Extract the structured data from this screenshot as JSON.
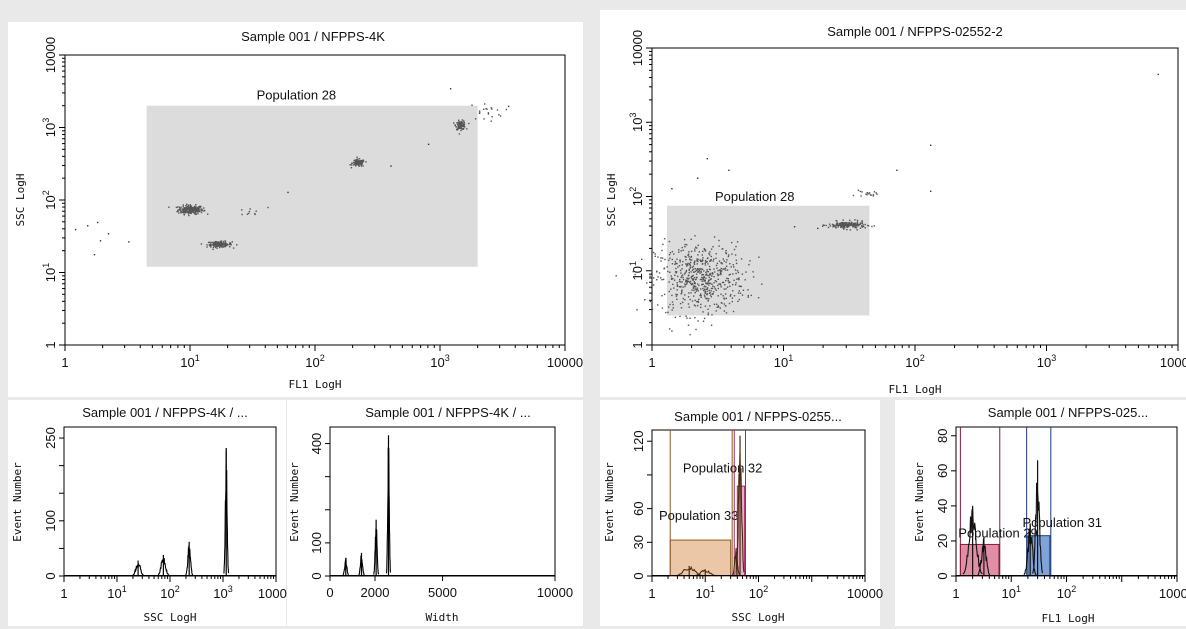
{
  "chart_data": [
    {
      "id": "left_dot",
      "type": "scatter",
      "title": "Sample 001 / NFPPS-4K",
      "xlabel": "FL1 LogH",
      "ylabel": "SSC LogH",
      "xscale": "log",
      "yscale": "log",
      "xlim": [
        1,
        10000
      ],
      "ylim": [
        1,
        10000
      ],
      "x_ticks": [
        {
          "b": "1",
          "e": ""
        },
        {
          "b": "10",
          "e": "1"
        },
        {
          "b": "10",
          "e": "2"
        },
        {
          "b": "10",
          "e": "3"
        },
        {
          "b": "10000",
          "e": ""
        }
      ],
      "y_ticks": [
        {
          "b": "1",
          "e": ""
        },
        {
          "b": "10",
          "e": "1"
        },
        {
          "b": "10",
          "e": "2"
        },
        {
          "b": "10",
          "e": "3"
        },
        {
          "b": "10000",
          "e": ""
        }
      ],
      "gate": {
        "label": "Population 28",
        "x": [
          4.5,
          2000
        ],
        "y": [
          12,
          2000
        ]
      },
      "clusters": [
        {
          "x": 10,
          "y": 75,
          "n": 220,
          "sx": 0.05,
          "sy": 0.03
        },
        {
          "x": 17,
          "y": 25,
          "n": 130,
          "sx": 0.05,
          "sy": 0.02
        },
        {
          "x": 220,
          "y": 330,
          "n": 110,
          "sx": 0.025,
          "sy": 0.025
        },
        {
          "x": 1450,
          "y": 1100,
          "n": 90,
          "sx": 0.02,
          "sy": 0.03
        },
        {
          "x": 2300,
          "y": 1700,
          "n": 20,
          "sx": 0.07,
          "sy": 0.06
        },
        {
          "x": 30,
          "y": 70,
          "n": 10,
          "sx": 0.07,
          "sy": 0.03
        }
      ],
      "points": [
        [
          1.2,
          40
        ],
        [
          1.5,
          45
        ],
        [
          1.7,
          18
        ],
        [
          1.9,
          28
        ],
        [
          2.2,
          35
        ],
        [
          3.2,
          27
        ],
        [
          1.8,
          50
        ],
        [
          60,
          130
        ],
        [
          800,
          600
        ],
        [
          1200,
          3500
        ],
        [
          400,
          300
        ],
        [
          3500,
          2000
        ]
      ]
    },
    {
      "id": "right_dot",
      "type": "scatter",
      "title": "Sample 001 / NFPPS-02552-2",
      "xlabel": "FL1 LogH",
      "ylabel": "SSC LogH",
      "xscale": "log",
      "yscale": "log",
      "xlim": [
        1,
        10000
      ],
      "ylim": [
        1,
        10000
      ],
      "x_ticks": [
        {
          "b": "1",
          "e": ""
        },
        {
          "b": "10",
          "e": "1"
        },
        {
          "b": "10",
          "e": "2"
        },
        {
          "b": "10",
          "e": "3"
        },
        {
          "b": "10000",
          "e": ""
        }
      ],
      "y_ticks": [
        {
          "b": "1",
          "e": ""
        },
        {
          "b": "10",
          "e": "1"
        },
        {
          "b": "10",
          "e": "2"
        },
        {
          "b": "10",
          "e": "3"
        },
        {
          "b": "10000",
          "e": ""
        }
      ],
      "gate": {
        "label": "Population 28",
        "x": [
          1.3,
          45
        ],
        "y": [
          2.5,
          75
        ]
      },
      "clusters": [
        {
          "x": 2.3,
          "y": 8,
          "n": 600,
          "sx": 0.17,
          "sy": 0.24
        },
        {
          "x": 30,
          "y": 42,
          "n": 180,
          "sx": 0.07,
          "sy": 0.025
        },
        {
          "x": 42,
          "y": 110,
          "n": 18,
          "sx": 0.04,
          "sy": 0.02
        }
      ],
      "points": [
        [
          2.6,
          330
        ],
        [
          3.8,
          230
        ],
        [
          130,
          500
        ],
        [
          7000,
          4500
        ],
        [
          72,
          230
        ],
        [
          130,
          120
        ],
        [
          1.4,
          130
        ],
        [
          2.2,
          180
        ],
        [
          12,
          40
        ],
        [
          18,
          38
        ]
      ]
    },
    {
      "id": "left_hist_ssc",
      "type": "histogram",
      "title": "Sample 001 / NFPPS-4K / ...",
      "xlabel": "SSC LogH",
      "ylabel": "Event Number",
      "xscale": "log",
      "xlim": [
        1,
        10000
      ],
      "ylim": [
        0,
        270
      ],
      "x_ticks": [
        {
          "b": "1",
          "e": ""
        },
        {
          "b": "10",
          "e": "1"
        },
        {
          "b": "10",
          "e": "2"
        },
        {
          "b": "10",
          "e": "3"
        },
        {
          "b": "10000",
          "e": ""
        }
      ],
      "y_ticks": [
        0,
        50,
        100,
        150,
        200,
        250
      ],
      "y_tick_labels": [
        "0",
        "",
        "100",
        "",
        "",
        "250"
      ],
      "peaks": [
        {
          "x": 25,
          "y": 28,
          "w": 0.05
        },
        {
          "x": 75,
          "y": 38,
          "w": 0.05
        },
        {
          "x": 230,
          "y": 62,
          "w": 0.03
        },
        {
          "x": 1150,
          "y": 232,
          "w": 0.02
        }
      ]
    },
    {
      "id": "left_hist_width",
      "type": "histogram",
      "title": "Sample 001 / NFPPS-4K / ...",
      "xlabel": "Width",
      "ylabel": "Event Number",
      "xscale": "linear",
      "xlim": [
        0,
        10000
      ],
      "ylim": [
        0,
        450
      ],
      "x_ticks": [
        0,
        2000,
        5000,
        10000
      ],
      "x_tick_labels": [
        "0",
        "2000",
        "5000",
        "10000"
      ],
      "y_ticks": [
        0,
        100,
        200,
        300,
        400
      ],
      "y_tick_labels": [
        "0",
        "100",
        "",
        "",
        "400"
      ],
      "peaks": [
        {
          "x": 700,
          "y": 55,
          "w": 60
        },
        {
          "x": 1400,
          "y": 70,
          "w": 60
        },
        {
          "x": 2050,
          "y": 170,
          "w": 50
        },
        {
          "x": 2600,
          "y": 425,
          "w": 40
        }
      ]
    },
    {
      "id": "right_hist_ssc",
      "type": "histogram",
      "title": "Sample 001 / NFPPS-0255...",
      "xlabel": "SSC LogH",
      "ylabel": "Event Number",
      "xscale": "log",
      "xlim": [
        1,
        10000
      ],
      "ylim": [
        0,
        130
      ],
      "x_ticks": [
        {
          "b": "1",
          "e": ""
        },
        {
          "b": "10",
          "e": "1"
        },
        {
          "b": "10",
          "e": "2"
        },
        {
          "b": "10000",
          "e": ""
        }
      ],
      "x_tick_positions": [
        1,
        10,
        100,
        10000
      ],
      "y_ticks": [
        0,
        30,
        60,
        90,
        120
      ],
      "y_tick_labels": [
        "0",
        "30",
        "60",
        "",
        "120"
      ],
      "regions": [
        {
          "label": "Population 33",
          "x": [
            2.2,
            30
          ],
          "y": [
            0,
            32
          ],
          "fill": "#e8bd98",
          "stroke": "#8a5a2b",
          "line_x": [
            2.2,
            32
          ],
          "label_x": 1.35,
          "label_y": 50
        },
        {
          "label": "Population 32",
          "x": [
            40,
            55
          ],
          "y": [
            0,
            80
          ],
          "fill": "#e8a0c0",
          "stroke": "#9c2a5c",
          "line_x": [
            35,
            57
          ],
          "label_x": 3.8,
          "label_y": 92
        }
      ],
      "peaks": [
        {
          "x": 5,
          "y": 9,
          "w": 0.12
        },
        {
          "x": 10,
          "y": 6,
          "w": 0.1
        },
        {
          "x": 45,
          "y": 125,
          "w": 0.035
        },
        {
          "x": 38,
          "y": 25,
          "w": 0.03
        }
      ],
      "peak_color": "#4a2a10"
    },
    {
      "id": "right_hist_fl1",
      "type": "histogram",
      "title": "Sample 001 / NFPPS-025...",
      "xlabel": "FL1 LogH",
      "ylabel": "Event Number",
      "xscale": "log",
      "xlim": [
        1,
        10000
      ],
      "ylim": [
        0,
        85
      ],
      "x_ticks": [
        {
          "b": "1",
          "e": ""
        },
        {
          "b": "10",
          "e": "1"
        },
        {
          "b": "10",
          "e": "2"
        },
        {
          "b": "10000",
          "e": ""
        }
      ],
      "x_tick_positions": [
        1,
        10,
        100,
        10000
      ],
      "y_ticks": [
        0,
        20,
        40,
        60,
        80
      ],
      "y_tick_labels": [
        "0",
        "20",
        "40",
        "60",
        "80"
      ],
      "regions": [
        {
          "label": "Population 29",
          "x": [
            1.2,
            6
          ],
          "y": [
            0,
            18
          ],
          "fill": "#d97a96",
          "stroke": "#8a1a3a",
          "line_x": [
            1.2,
            6.2
          ],
          "label_x": 1.1,
          "label_y": 22
        },
        {
          "label": "Population 31",
          "x": [
            20,
            50
          ],
          "y": [
            0,
            23
          ],
          "fill": "#6a94d0",
          "stroke": "#1a3a7a",
          "line_x": [
            19,
            52
          ],
          "label_x": 16,
          "label_y": 28
        }
      ],
      "peaks": [
        {
          "x": 2,
          "y": 40,
          "w": 0.08
        },
        {
          "x": 3.2,
          "y": 22,
          "w": 0.05
        },
        {
          "x": 30,
          "y": 66,
          "w": 0.04
        },
        {
          "x": 22,
          "y": 30,
          "w": 0.05
        }
      ],
      "peak_color": "#111111"
    }
  ]
}
